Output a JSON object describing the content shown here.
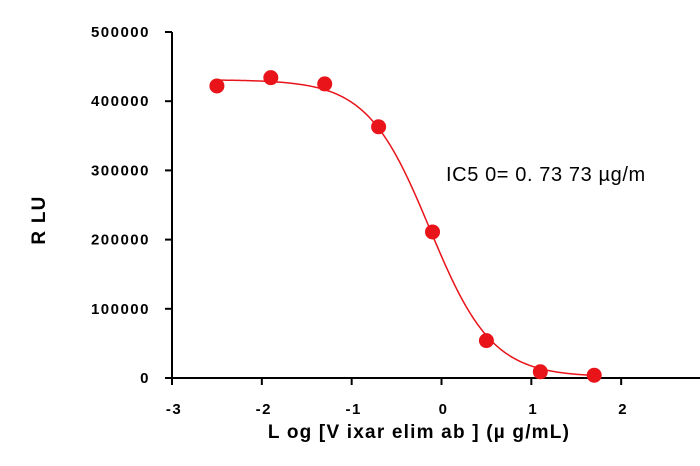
{
  "chart_data": {
    "type": "scatter",
    "xlabel": "L og [V ixar elim ab ] (µ g/mL)",
    "ylabel": "R LU",
    "xlim": [
      -3,
      3
    ],
    "ylim": [
      0,
      500000
    ],
    "x_ticks": [
      -3,
      -2,
      -1,
      0,
      1,
      2
    ],
    "x_tick_labels": [
      "-3",
      "-2",
      "-1",
      "0",
      "1",
      "2"
    ],
    "y_ticks": [
      0,
      100000,
      200000,
      300000,
      400000,
      500000
    ],
    "y_tick_labels": [
      "0",
      "100000",
      "200000",
      "300000",
      "400000",
      "500000"
    ],
    "annotation": "IC5 0= 0. 73 73 µg/m",
    "color": "#e8141a",
    "series": [
      {
        "x": [
          -2.5,
          -1.9,
          -1.3,
          -0.7,
          -0.1,
          0.5,
          1.1,
          1.7
        ],
        "y": [
          422000,
          434000,
          425000,
          363000,
          211000,
          54000,
          9000,
          4000
        ]
      }
    ],
    "fit": {
      "model": "4PL",
      "top": 431000,
      "bottom": 1500,
      "log_ic50": -0.1323,
      "hill_slope": 1.25
    },
    "grid": false,
    "legend": "none"
  }
}
